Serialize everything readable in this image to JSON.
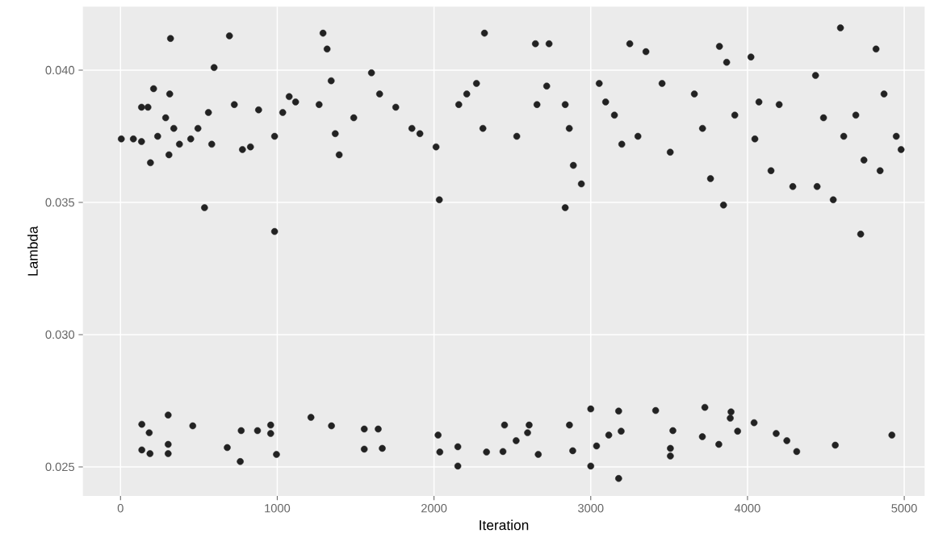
{
  "chart_data": {
    "type": "scatter",
    "xlabel": "Iteration",
    "ylabel": "Lambda",
    "xlim": [
      -240,
      5130
    ],
    "ylim": [
      0.0239,
      0.0424
    ],
    "xticks": [
      0,
      1000,
      2000,
      3000,
      4000,
      5000
    ],
    "yticks": [
      {
        "value": 0.025,
        "label": "0.025"
      },
      {
        "value": 0.03,
        "label": "0.030"
      },
      {
        "value": 0.035,
        "label": "0.035"
      },
      {
        "value": 0.04,
        "label": "0.040"
      }
    ],
    "grid": true,
    "marker": "circle",
    "color": "#222222",
    "x": [
      5,
      82,
      134,
      134,
      175,
      191,
      211,
      237,
      288,
      314,
      319,
      309,
      340,
      376,
      448,
      494,
      561,
      582,
      597,
      695,
      726,
      778,
      829,
      881,
      536,
      983,
      1035,
      1076,
      1117,
      1267,
      1292,
      1318,
      1370,
      1488,
      1344,
      1395,
      1601,
      1653,
      1756,
      1859,
      1910,
      983,
      2013,
      2158,
      2209,
      2271,
      2312,
      2322,
      2528,
      2657,
      2719,
      2837,
      2863,
      2889,
      2940,
      3054,
      3095,
      3151,
      3198,
      3301,
      3455,
      3507,
      3661,
      3713,
      3764,
      3867,
      3919,
      4047,
      4073,
      4150,
      4202,
      4289,
      4434,
      4485,
      4614,
      4691,
      4743,
      4820,
      4871,
      4949,
      4846,
      4980,
      4444,
      4593,
      4722,
      3847,
      4547,
      2034,
      2837,
      2647,
      2734,
      3249,
      3352,
      3821,
      4022,
      136,
      183,
      136,
      188,
      304,
      304,
      304,
      461,
      681,
      770,
      764,
      874,
      958,
      958,
      995,
      1215,
      1346,
      1555,
      1644,
      1555,
      1670,
      2026,
      2037,
      2152,
      2152,
      2335,
      2450,
      2607,
      2597,
      2524,
      2440,
      2665,
      2864,
      2885,
      3000,
      3000,
      3037,
      3115,
      3178,
      3194,
      3178,
      3414,
      3524,
      3508,
      3508,
      3712,
      3728,
      3817,
      3895,
      3890,
      3937,
      4042,
      4183,
      4251,
      4314,
      4560,
      4921
    ],
    "values": [
      0.0374,
      0.0374,
      0.0373,
      0.0386,
      0.0386,
      0.0365,
      0.0393,
      0.0375,
      0.0382,
      0.0391,
      0.0412,
      0.0368,
      0.0378,
      0.0372,
      0.0374,
      0.0378,
      0.0384,
      0.0372,
      0.0401,
      0.0413,
      0.0387,
      0.037,
      0.0371,
      0.0385,
      0.0348,
      0.0375,
      0.0384,
      0.039,
      0.0388,
      0.0387,
      0.0414,
      0.0408,
      0.0376,
      0.0382,
      0.0396,
      0.0368,
      0.0399,
      0.0391,
      0.0386,
      0.0378,
      0.0376,
      0.0339,
      0.0371,
      0.0387,
      0.0391,
      0.0395,
      0.0378,
      0.0414,
      0.0375,
      0.0387,
      0.0394,
      0.0387,
      0.0378,
      0.0364,
      0.0357,
      0.0395,
      0.0388,
      0.0383,
      0.0372,
      0.0375,
      0.0395,
      0.0369,
      0.0391,
      0.0378,
      0.0359,
      0.0403,
      0.0383,
      0.0374,
      0.0388,
      0.0362,
      0.0387,
      0.0356,
      0.0398,
      0.0382,
      0.0375,
      0.0383,
      0.0366,
      0.0408,
      0.0391,
      0.0375,
      0.0362,
      0.037,
      0.0356,
      0.0416,
      0.0338,
      0.0349,
      0.0351,
      0.0351,
      0.0348,
      0.041,
      0.041,
      0.041,
      0.0407,
      0.0409,
      0.0405,
      0.02661,
      0.02629,
      0.02564,
      0.0255,
      0.02696,
      0.02585,
      0.0255,
      0.02655,
      0.02573,
      0.02637,
      0.0252,
      0.02637,
      0.02658,
      0.02626,
      0.02547,
      0.02687,
      0.02655,
      0.02643,
      0.02643,
      0.02567,
      0.0257,
      0.0262,
      0.02556,
      0.02576,
      0.02503,
      0.02556,
      0.02658,
      0.02658,
      0.02629,
      0.02599,
      0.02558,
      0.02547,
      0.02658,
      0.02561,
      0.02719,
      0.02503,
      0.02579,
      0.0262,
      0.02711,
      0.02635,
      0.02456,
      0.02713,
      0.02637,
      0.0257,
      0.02541,
      0.02614,
      0.02725,
      0.02585,
      0.02708,
      0.02684,
      0.02635,
      0.02667,
      0.02626,
      0.02599,
      0.02558,
      0.02582,
      0.0262
    ]
  }
}
